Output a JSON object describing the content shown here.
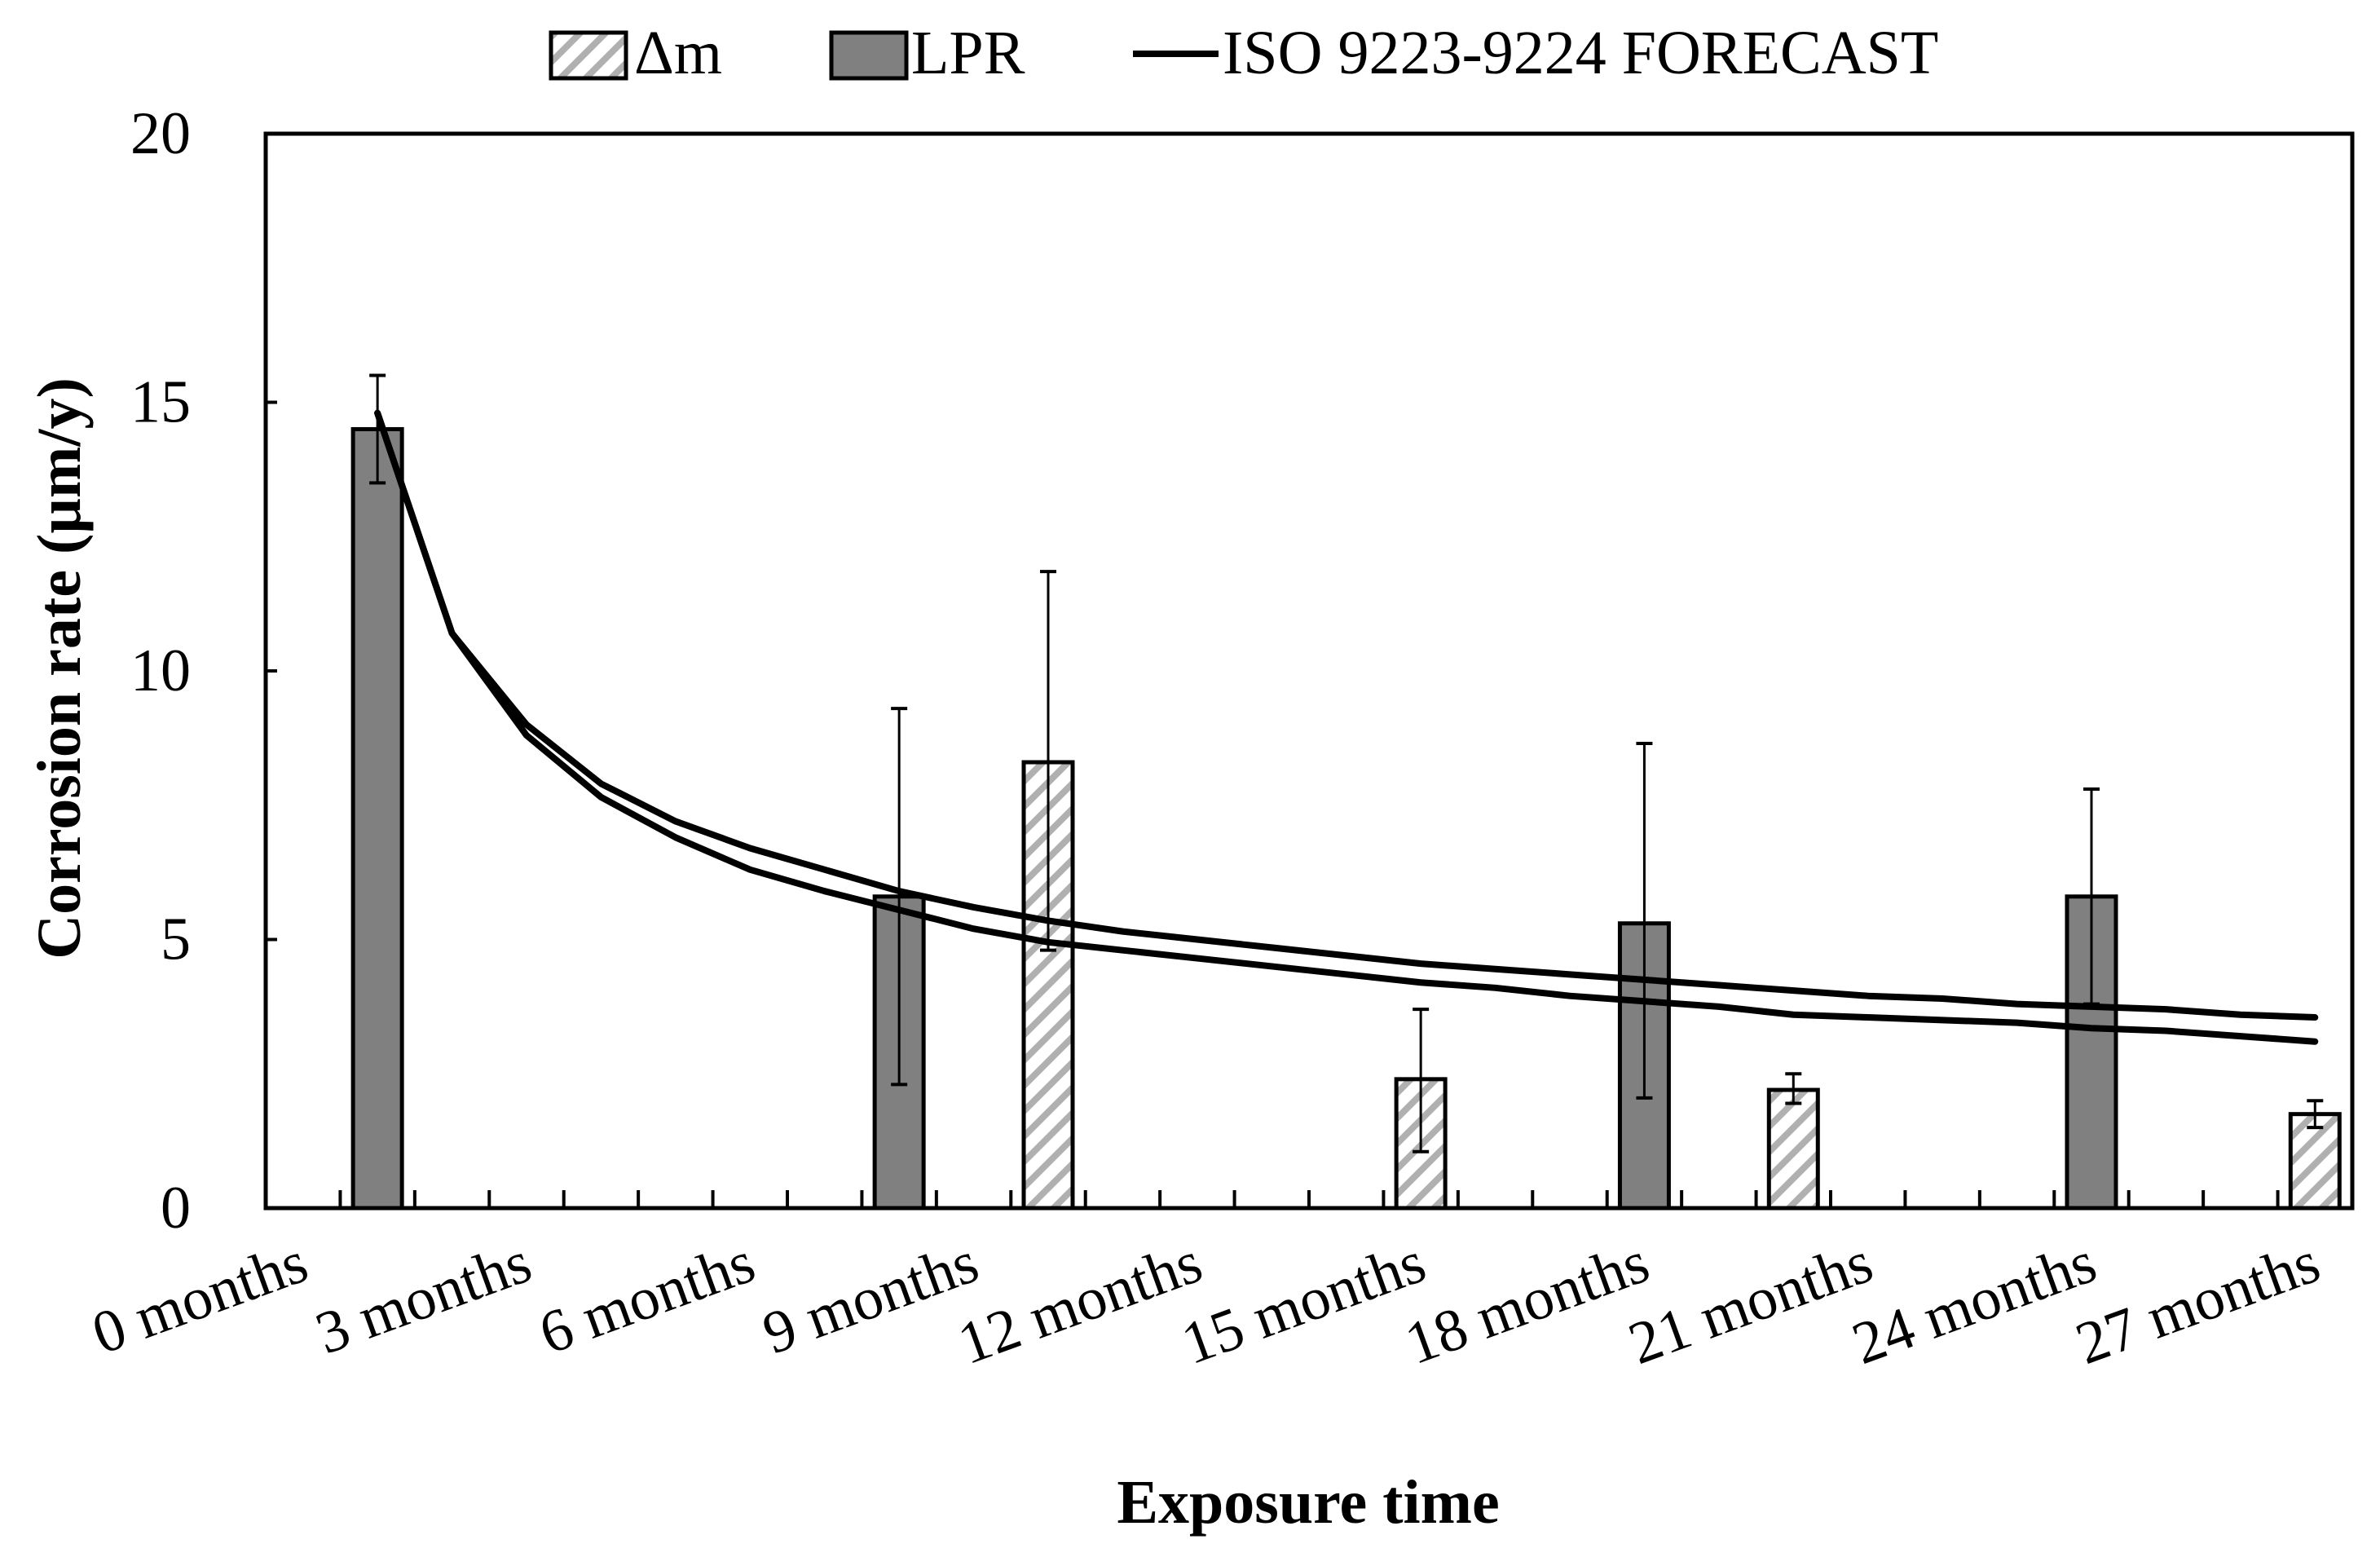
{
  "chart_data": {
    "type": "bar",
    "title": "",
    "xlabel": "Exposure time",
    "ylabel": "Corrosion rate (µm/y)",
    "ylim": [
      0,
      20
    ],
    "yticks": [
      "0",
      "5",
      "10",
      "15",
      "20"
    ],
    "xlim_months": [
      0,
      28
    ],
    "xtick_labels": [
      {
        "month": 0,
        "label": "0 months"
      },
      {
        "month": 3,
        "label": "3 months"
      },
      {
        "month": 6,
        "label": "6 months"
      },
      {
        "month": 9,
        "label": "9 months"
      },
      {
        "month": 12,
        "label": "12 months"
      },
      {
        "month": 15,
        "label": "15 months"
      },
      {
        "month": 18,
        "label": "18 months"
      },
      {
        "month": 21,
        "label": "21 months"
      },
      {
        "month": 24,
        "label": "24 months"
      },
      {
        "month": 27,
        "label": "27 months"
      }
    ],
    "legend": {
      "placement": "top-center",
      "entries": [
        "Δm",
        "LPR",
        "ISO 9223-9224 FORECAST"
      ]
    },
    "series": [
      {
        "name": "Δm",
        "kind": "bar",
        "style": "hatched",
        "points": [
          {
            "month": 10,
            "value": 8.3,
            "err_low": 4.8,
            "err_high": 11.85
          },
          {
            "month": 15,
            "value": 2.4,
            "err_low": 1.05,
            "err_high": 3.7
          },
          {
            "month": 20,
            "value": 2.2,
            "err_low": 1.95,
            "err_high": 2.5
          },
          {
            "month": 27,
            "value": 1.75,
            "err_low": 1.5,
            "err_high": 2.0
          }
        ]
      },
      {
        "name": "LPR",
        "kind": "bar",
        "style": "solid",
        "color": "#808080",
        "points": [
          {
            "month": 1,
            "value": 14.5,
            "err_low": 13.5,
            "err_high": 15.5
          },
          {
            "month": 8,
            "value": 5.8,
            "err_low": 2.3,
            "err_high": 9.3
          },
          {
            "month": 18,
            "value": 5.3,
            "err_low": 2.05,
            "err_high": 8.65
          },
          {
            "month": 24,
            "value": 5.8,
            "err_low": 3.8,
            "err_high": 7.8
          }
        ]
      },
      {
        "name": "ISO 9223-9224 FORECAST",
        "kind": "line",
        "color": "#000000",
        "months": [
          1,
          2,
          3,
          4,
          5,
          6,
          7,
          8,
          9,
          10,
          11,
          12,
          13,
          14,
          15,
          16,
          17,
          18,
          19,
          20,
          21,
          22,
          23,
          24,
          25,
          26,
          27
        ],
        "upper": [
          14.8,
          10.7,
          9.0,
          7.9,
          7.2,
          6.7,
          6.3,
          5.9,
          5.6,
          5.35,
          5.15,
          5.0,
          4.85,
          4.7,
          4.55,
          4.45,
          4.35,
          4.25,
          4.15,
          4.05,
          3.95,
          3.9,
          3.8,
          3.75,
          3.7,
          3.6,
          3.55
        ],
        "lower": [
          14.8,
          10.7,
          8.8,
          7.65,
          6.9,
          6.3,
          5.9,
          5.55,
          5.2,
          4.95,
          4.8,
          4.65,
          4.5,
          4.35,
          4.2,
          4.1,
          3.95,
          3.85,
          3.75,
          3.6,
          3.55,
          3.5,
          3.45,
          3.35,
          3.3,
          3.2,
          3.1
        ]
      }
    ]
  }
}
